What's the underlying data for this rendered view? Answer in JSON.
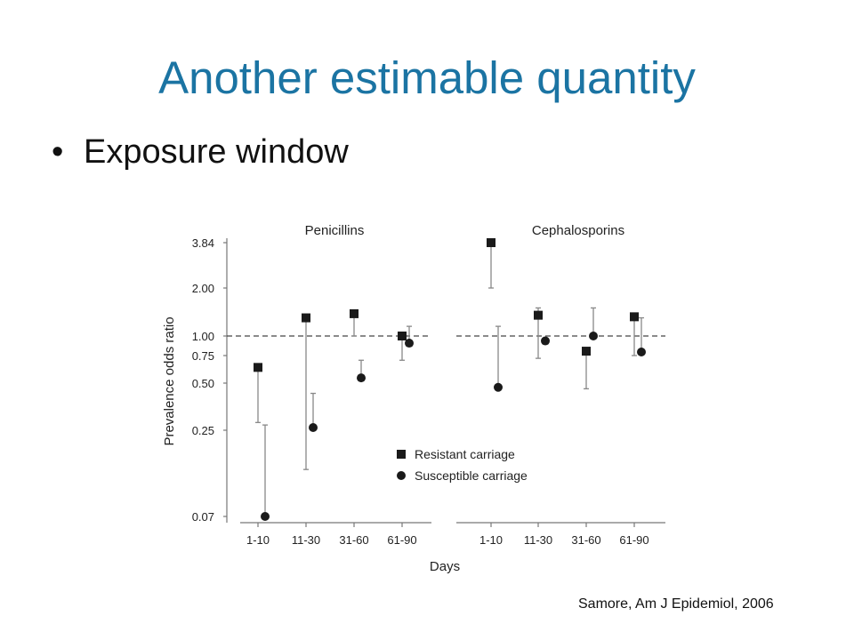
{
  "slide": {
    "title": "Another estimable quantity",
    "bullet": "Exposure window",
    "citation": "Samore, Am J Epidemiol, 2006"
  },
  "chart_data": {
    "type": "scatter",
    "ylabel": "Prevalence odds ratio",
    "xlabel": "Days",
    "y_scale": "log",
    "y_ticks": [
      "3.84",
      "2.00",
      "1.00",
      "0.75",
      "0.50",
      "0.25",
      "0.07"
    ],
    "reference_line": 1.0,
    "legend": [
      {
        "marker": "square",
        "label": "Resistant carriage"
      },
      {
        "marker": "circle",
        "label": "Susceptible carriage"
      }
    ],
    "legend_position": "bottom-center",
    "panels": [
      {
        "title": "Penicillins",
        "categories": [
          "1-10",
          "11-30",
          "31-60",
          "61-90"
        ],
        "series": [
          {
            "name": "Resistant carriage",
            "marker": "square",
            "values": [
              0.63,
              1.3,
              1.38,
              1.0
            ],
            "ci_low": [
              0.28,
              0.14,
              1.0,
              0.7
            ],
            "ci_high": [
              0.63,
              1.3,
              1.38,
              1.0
            ]
          },
          {
            "name": "Susceptible carriage",
            "marker": "circle",
            "values": [
              0.07,
              0.26,
              0.54,
              0.9
            ],
            "ci_low": [
              0.07,
              0.26,
              0.54,
              0.9
            ],
            "ci_high": [
              0.27,
              0.43,
              0.7,
              1.15
            ]
          }
        ]
      },
      {
        "title": "Cephalosporins",
        "categories": [
          "1-10",
          "11-30",
          "31-60",
          "61-90"
        ],
        "series": [
          {
            "name": "Resistant carriage",
            "marker": "square",
            "values": [
              3.84,
              1.35,
              0.8,
              1.32
            ],
            "ci_low": [
              2.0,
              0.72,
              0.46,
              0.75
            ],
            "ci_high": [
              3.84,
              1.5,
              0.8,
              1.32
            ]
          },
          {
            "name": "Susceptible carriage",
            "marker": "circle",
            "values": [
              0.47,
              0.93,
              1.0,
              0.79
            ],
            "ci_low": [
              0.47,
              0.93,
              1.0,
              0.79
            ],
            "ci_high": [
              1.15,
              0.93,
              1.5,
              1.3
            ]
          }
        ]
      }
    ]
  }
}
